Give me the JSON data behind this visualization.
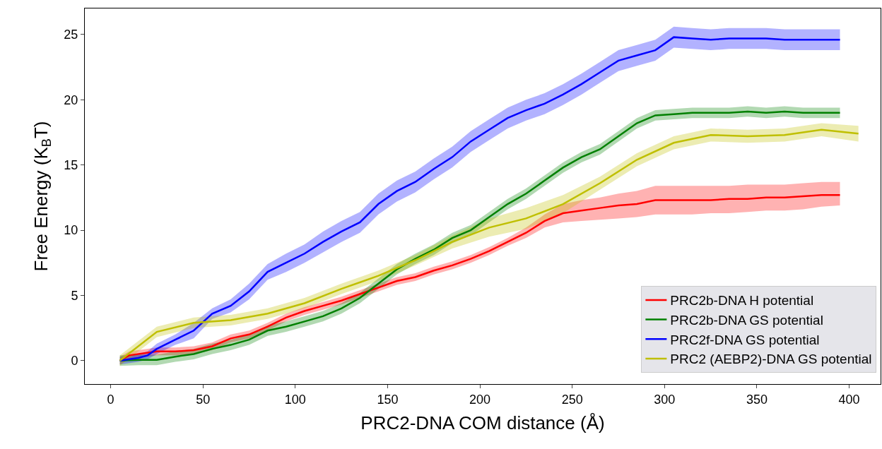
{
  "chart_data": {
    "type": "line",
    "xlabel": "PRC2-DNA COM distance (Å)",
    "ylabel": "Free Energy (K$_{B}$T)",
    "xlim": [
      -14,
      417
    ],
    "ylim": [
      -1.8,
      27
    ],
    "xticks": [
      0,
      50,
      100,
      150,
      200,
      250,
      300,
      350,
      400
    ],
    "yticks": [
      0,
      5,
      10,
      15,
      20,
      25
    ],
    "legend": "bottom right",
    "marker": "none",
    "line_style": "solid",
    "series": [
      {
        "name": "PRC2b-DNA H potential",
        "color": "#ff0000",
        "x": [
          5,
          10,
          25,
          35,
          45,
          55,
          65,
          75,
          85,
          95,
          105,
          115,
          125,
          135,
          145,
          155,
          165,
          175,
          185,
          195,
          205,
          215,
          225,
          235,
          245,
          255,
          265,
          275,
          285,
          295,
          305,
          315,
          325,
          335,
          345,
          355,
          365,
          375,
          385,
          395
        ],
        "values": [
          0,
          0.4,
          0.7,
          0.7,
          0.8,
          1.1,
          1.7,
          2.0,
          2.6,
          3.3,
          3.8,
          4.2,
          4.6,
          5.1,
          5.6,
          6.1,
          6.4,
          6.9,
          7.3,
          7.8,
          8.4,
          9.1,
          9.8,
          10.7,
          11.3,
          11.5,
          11.7,
          11.9,
          12.0,
          12.3,
          12.3,
          12.3,
          12.3,
          12.4,
          12.4,
          12.5,
          12.5,
          12.6,
          12.7,
          12.7
        ],
        "lower": [
          -0.3,
          0.1,
          0.4,
          0.4,
          0.5,
          0.8,
          1.4,
          1.7,
          2.3,
          3.0,
          3.5,
          3.9,
          4.3,
          4.8,
          5.3,
          5.8,
          6.1,
          6.6,
          7.0,
          7.5,
          8.1,
          8.8,
          9.4,
          10.2,
          10.6,
          10.7,
          10.8,
          10.9,
          11.0,
          11.2,
          11.2,
          11.2,
          11.3,
          11.3,
          11.4,
          11.5,
          11.5,
          11.6,
          11.8,
          11.9
        ],
        "upper": [
          0.3,
          0.7,
          1.0,
          1.0,
          1.1,
          1.4,
          2.0,
          2.3,
          2.9,
          3.6,
          4.1,
          4.5,
          4.9,
          5.4,
          5.9,
          6.4,
          6.7,
          7.2,
          7.6,
          8.1,
          8.7,
          9.4,
          10.2,
          11.2,
          12.0,
          12.3,
          12.5,
          12.8,
          13.0,
          13.4,
          13.4,
          13.4,
          13.4,
          13.4,
          13.5,
          13.5,
          13.5,
          13.6,
          13.7,
          13.7
        ]
      },
      {
        "name": "PRC2b-DNA GS potential",
        "color": "#008000",
        "x": [
          5,
          15,
          25,
          35,
          45,
          55,
          65,
          75,
          85,
          95,
          105,
          115,
          125,
          135,
          145,
          155,
          165,
          175,
          185,
          195,
          205,
          215,
          225,
          235,
          245,
          255,
          265,
          275,
          285,
          295,
          305,
          315,
          325,
          335,
          345,
          355,
          365,
          375,
          385,
          395
        ],
        "values": [
          0,
          0.05,
          0.05,
          0.3,
          0.5,
          0.9,
          1.2,
          1.6,
          2.3,
          2.6,
          3.0,
          3.4,
          4.0,
          4.8,
          5.9,
          7.0,
          7.8,
          8.5,
          9.4,
          10.0,
          11.0,
          12.0,
          12.8,
          13.8,
          14.8,
          15.6,
          16.2,
          17.2,
          18.2,
          18.8,
          18.9,
          19.0,
          19.0,
          19.0,
          19.1,
          19.0,
          19.1,
          19.0,
          19.0,
          19.0
        ],
        "lower": [
          -0.4,
          -0.35,
          -0.35,
          -0.1,
          0.1,
          0.5,
          0.8,
          1.2,
          1.9,
          2.2,
          2.6,
          3.0,
          3.6,
          4.4,
          5.5,
          6.6,
          7.4,
          8.1,
          9.0,
          9.6,
          10.6,
          11.6,
          12.4,
          13.4,
          14.4,
          15.2,
          15.8,
          16.8,
          17.8,
          18.4,
          18.5,
          18.6,
          18.6,
          18.6,
          18.7,
          18.6,
          18.7,
          18.6,
          18.6,
          18.6
        ],
        "upper": [
          0.4,
          0.45,
          0.45,
          0.7,
          0.9,
          1.3,
          1.6,
          2.0,
          2.7,
          3.0,
          3.4,
          3.8,
          4.4,
          5.2,
          6.3,
          7.4,
          8.2,
          8.9,
          9.8,
          10.4,
          11.4,
          12.4,
          13.2,
          14.2,
          15.2,
          16.0,
          16.6,
          17.6,
          18.6,
          19.2,
          19.3,
          19.4,
          19.4,
          19.4,
          19.5,
          19.4,
          19.5,
          19.4,
          19.4,
          19.4
        ]
      },
      {
        "name": "PRC2f-DNA GS potential",
        "color": "#0000ff",
        "x": [
          5,
          15,
          20,
          25,
          35,
          45,
          55,
          65,
          75,
          85,
          95,
          105,
          115,
          125,
          135,
          145,
          155,
          165,
          175,
          185,
          195,
          205,
          215,
          225,
          235,
          245,
          255,
          265,
          275,
          285,
          295,
          305,
          315,
          325,
          335,
          345,
          355,
          365,
          375,
          385,
          395
        ],
        "values": [
          0,
          0.2,
          0.4,
          0.9,
          1.6,
          2.3,
          3.6,
          4.2,
          5.3,
          6.8,
          7.5,
          8.2,
          9.1,
          9.9,
          10.6,
          12.0,
          13.0,
          13.7,
          14.7,
          15.6,
          16.8,
          17.7,
          18.6,
          19.2,
          19.7,
          20.4,
          21.2,
          22.1,
          23.0,
          23.4,
          23.8,
          24.8,
          24.7,
          24.6,
          24.7,
          24.7,
          24.7,
          24.6,
          24.6,
          24.6,
          24.6
        ],
        "lower": [
          -0.3,
          -0.1,
          0.1,
          0.5,
          1.2,
          1.7,
          3.2,
          3.7,
          4.7,
          6.2,
          6.8,
          7.5,
          8.3,
          9.1,
          9.8,
          11.2,
          12.2,
          12.9,
          13.9,
          14.8,
          16.0,
          16.9,
          17.8,
          18.4,
          18.9,
          19.6,
          20.4,
          21.3,
          22.2,
          22.6,
          23.0,
          24.0,
          23.9,
          23.8,
          23.9,
          23.9,
          23.9,
          23.8,
          23.8,
          23.8,
          23.8
        ],
        "upper": [
          0.3,
          0.5,
          0.7,
          1.3,
          2.0,
          2.9,
          4.0,
          4.7,
          5.9,
          7.4,
          8.2,
          8.9,
          9.9,
          10.7,
          11.4,
          12.8,
          13.8,
          14.5,
          15.5,
          16.4,
          17.6,
          18.5,
          19.4,
          20.0,
          20.5,
          21.2,
          22.0,
          22.9,
          23.8,
          24.2,
          24.6,
          25.6,
          25.5,
          25.4,
          25.5,
          25.5,
          25.5,
          25.4,
          25.4,
          25.4,
          25.4
        ]
      },
      {
        "name": "PRC2 (AEBP2)-DNA GS potential",
        "color": "#bfbf00",
        "x": [
          5,
          25,
          45,
          65,
          85,
          105,
          125,
          145,
          165,
          185,
          205,
          225,
          245,
          265,
          285,
          305,
          325,
          345,
          365,
          385,
          405
        ],
        "values": [
          0,
          2.2,
          2.9,
          3.1,
          3.6,
          4.4,
          5.5,
          6.5,
          7.7,
          9.1,
          10.2,
          10.9,
          12.0,
          13.6,
          15.4,
          16.7,
          17.3,
          17.2,
          17.3,
          17.7,
          17.4
        ],
        "lower": [
          -0.4,
          1.8,
          2.5,
          2.7,
          3.2,
          4.0,
          5.1,
          6.1,
          7.3,
          8.6,
          9.5,
          10.1,
          11.3,
          13.1,
          14.9,
          16.2,
          16.8,
          16.7,
          16.8,
          17.2,
          16.8
        ],
        "upper": [
          0.4,
          2.6,
          3.3,
          3.5,
          4.0,
          4.8,
          5.9,
          6.9,
          8.1,
          9.6,
          10.9,
          11.7,
          12.7,
          14.1,
          15.9,
          17.2,
          17.8,
          17.7,
          17.8,
          18.2,
          18.0
        ]
      }
    ]
  }
}
